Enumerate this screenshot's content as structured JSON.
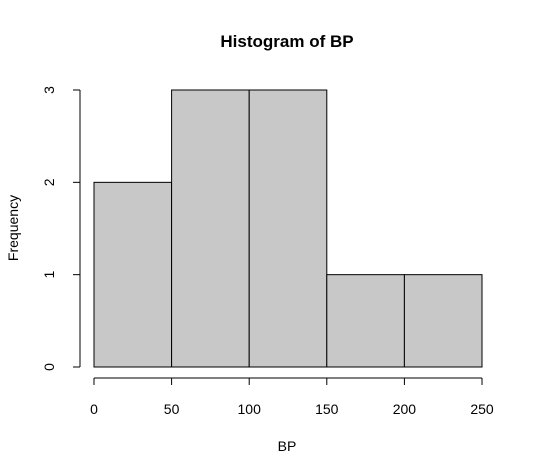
{
  "chart_data": {
    "type": "bar",
    "title": "Histogram of BP",
    "xlabel": "BP",
    "ylabel": "Frequency",
    "bins": [
      {
        "from": 0,
        "to": 50,
        "count": 2
      },
      {
        "from": 50,
        "to": 100,
        "count": 3
      },
      {
        "from": 100,
        "to": 150,
        "count": 3
      },
      {
        "from": 150,
        "to": 200,
        "count": 1
      },
      {
        "from": 200,
        "to": 250,
        "count": 1
      }
    ],
    "xlim": [
      0,
      250
    ],
    "ylim": [
      0,
      3
    ],
    "x_ticks": [
      0,
      50,
      100,
      150,
      200,
      250
    ],
    "y_ticks": [
      0,
      1,
      2,
      3
    ],
    "grid": false,
    "legend": "none",
    "bar_color": "#c8c8c8",
    "edge_color": "#000000"
  }
}
